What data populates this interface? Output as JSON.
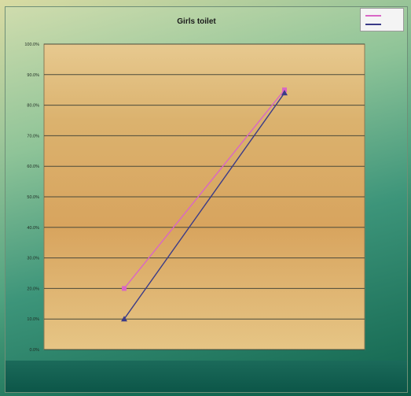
{
  "chart_data": {
    "type": "line",
    "title": "Girls toilet",
    "categories": [
      "",
      ""
    ],
    "series": [
      {
        "name": "",
        "values": [
          20.0,
          85.0
        ],
        "color": "#d966c6",
        "marker": "square"
      },
      {
        "name": "",
        "values": [
          10.0,
          84.0
        ],
        "color": "#3b3b88",
        "marker": "triangle"
      }
    ],
    "ylim": [
      0,
      100
    ],
    "yticks": [
      "0.0%",
      "10.0%",
      "20.0%",
      "30.0%",
      "40.0%",
      "50.0%",
      "60.0%",
      "70.0%",
      "80.0%",
      "90.0%",
      "100.0%"
    ],
    "grid": true,
    "legend_position": "top-right"
  }
}
